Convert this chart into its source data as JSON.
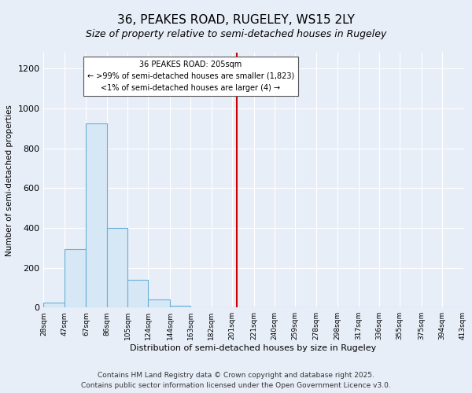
{
  "title": "36, PEAKES ROAD, RUGELEY, WS15 2LY",
  "subtitle": "Size of property relative to semi-detached houses in Rugeley",
  "xlabel": "Distribution of semi-detached houses by size in Rugeley",
  "ylabel": "Number of semi-detached properties",
  "bin_edges": [
    28,
    47,
    67,
    86,
    105,
    124,
    144,
    163,
    182,
    201,
    221,
    240,
    259,
    278,
    298,
    317,
    336,
    355,
    375,
    394,
    413
  ],
  "bin_counts": [
    25,
    295,
    925,
    400,
    140,
    40,
    10,
    0,
    0,
    0,
    0,
    0,
    0,
    0,
    0,
    0,
    0,
    0,
    0,
    0
  ],
  "bar_facecolor": "#d6e8f5",
  "bar_edgecolor": "#6aaed6",
  "vline_x": 205,
  "vline_color": "#cc0000",
  "annotation_title": "36 PEAKES ROAD: 205sqm",
  "annotation_line1": "← >99% of semi-detached houses are smaller (1,823)",
  "annotation_line2": "<1% of semi-detached houses are larger (4) →",
  "annotation_box_facecolor": "#ffffff",
  "annotation_box_edgecolor": "#555555",
  "ylim": [
    0,
    1280
  ],
  "yticks": [
    0,
    200,
    400,
    600,
    800,
    1000,
    1200
  ],
  "tick_labels": [
    "28sqm",
    "47sqm",
    "67sqm",
    "86sqm",
    "105sqm",
    "124sqm",
    "144sqm",
    "163sqm",
    "182sqm",
    "201sqm",
    "221sqm",
    "240sqm",
    "259sqm",
    "278sqm",
    "298sqm",
    "317sqm",
    "336sqm",
    "355sqm",
    "375sqm",
    "394sqm",
    "413sqm"
  ],
  "bg_color": "#e8eef8",
  "plot_bg_color": "#e8eef8",
  "footer1": "Contains HM Land Registry data © Crown copyright and database right 2025.",
  "footer2": "Contains public sector information licensed under the Open Government Licence v3.0.",
  "grid_color": "#ffffff",
  "title_fontsize": 11,
  "subtitle_fontsize": 9,
  "footer_fontsize": 6.5
}
